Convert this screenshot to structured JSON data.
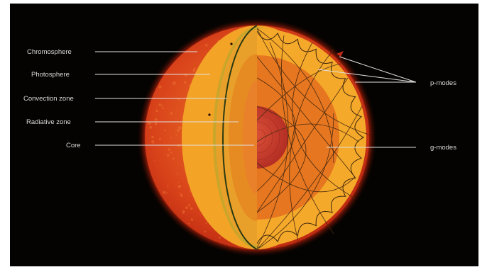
{
  "diagram": {
    "left_labels": [
      {
        "id": "chromosphere",
        "text": "Chromosphere"
      },
      {
        "id": "photosphere",
        "text": "Photosphere"
      },
      {
        "id": "convection",
        "text": "Convection zone"
      },
      {
        "id": "radiative",
        "text": "Radiative zone"
      },
      {
        "id": "core",
        "text": "Core"
      }
    ],
    "right_labels": [
      {
        "id": "p-modes",
        "text": "p-modes"
      },
      {
        "id": "g-modes",
        "text": "g-modes"
      }
    ],
    "colors": {
      "background": "#050301",
      "outer_glow": "#c8280e",
      "chromosphere": "#d9481a",
      "photosphere": "#f3a326",
      "convection": "#e98a23",
      "radiative": "#e6761f",
      "core": "#c33a26",
      "ray_lines": "#4a2a10"
    }
  }
}
